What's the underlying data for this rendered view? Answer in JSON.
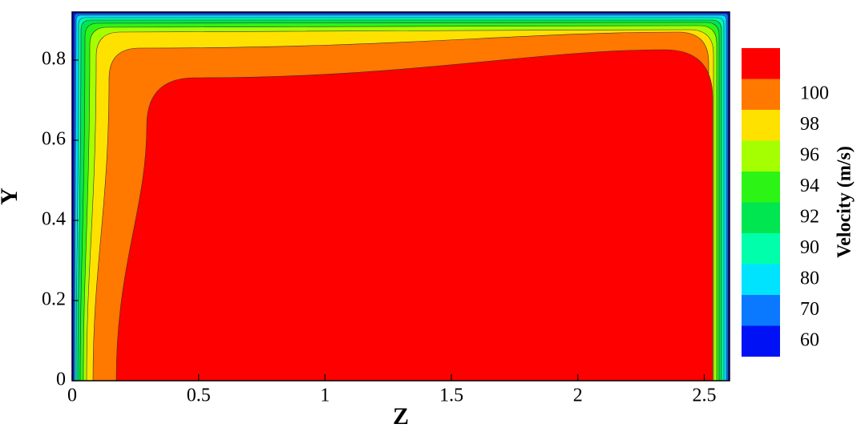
{
  "chart_data": {
    "type": "contour",
    "xlabel": "Z",
    "ylabel": "Y",
    "xlim": [
      0,
      2.6
    ],
    "xticks": [
      0,
      0.5,
      1,
      1.5,
      2,
      2.5
    ],
    "ylim": [
      0,
      0.92
    ],
    "yticks": [
      0,
      0.2,
      0.4,
      0.6,
      0.8
    ],
    "colorbar": {
      "title": "Velocity (m/s)",
      "levels": [
        60,
        70,
        80,
        90,
        92,
        94,
        96,
        98,
        100
      ],
      "colors": [
        "#0012f5",
        "#0a78ff",
        "#00e3ff",
        "#00ffaa",
        "#00e650",
        "#2cf516",
        "#a6ff00",
        "#ffe100",
        "#ff7800",
        "#ff0000"
      ]
    }
  }
}
